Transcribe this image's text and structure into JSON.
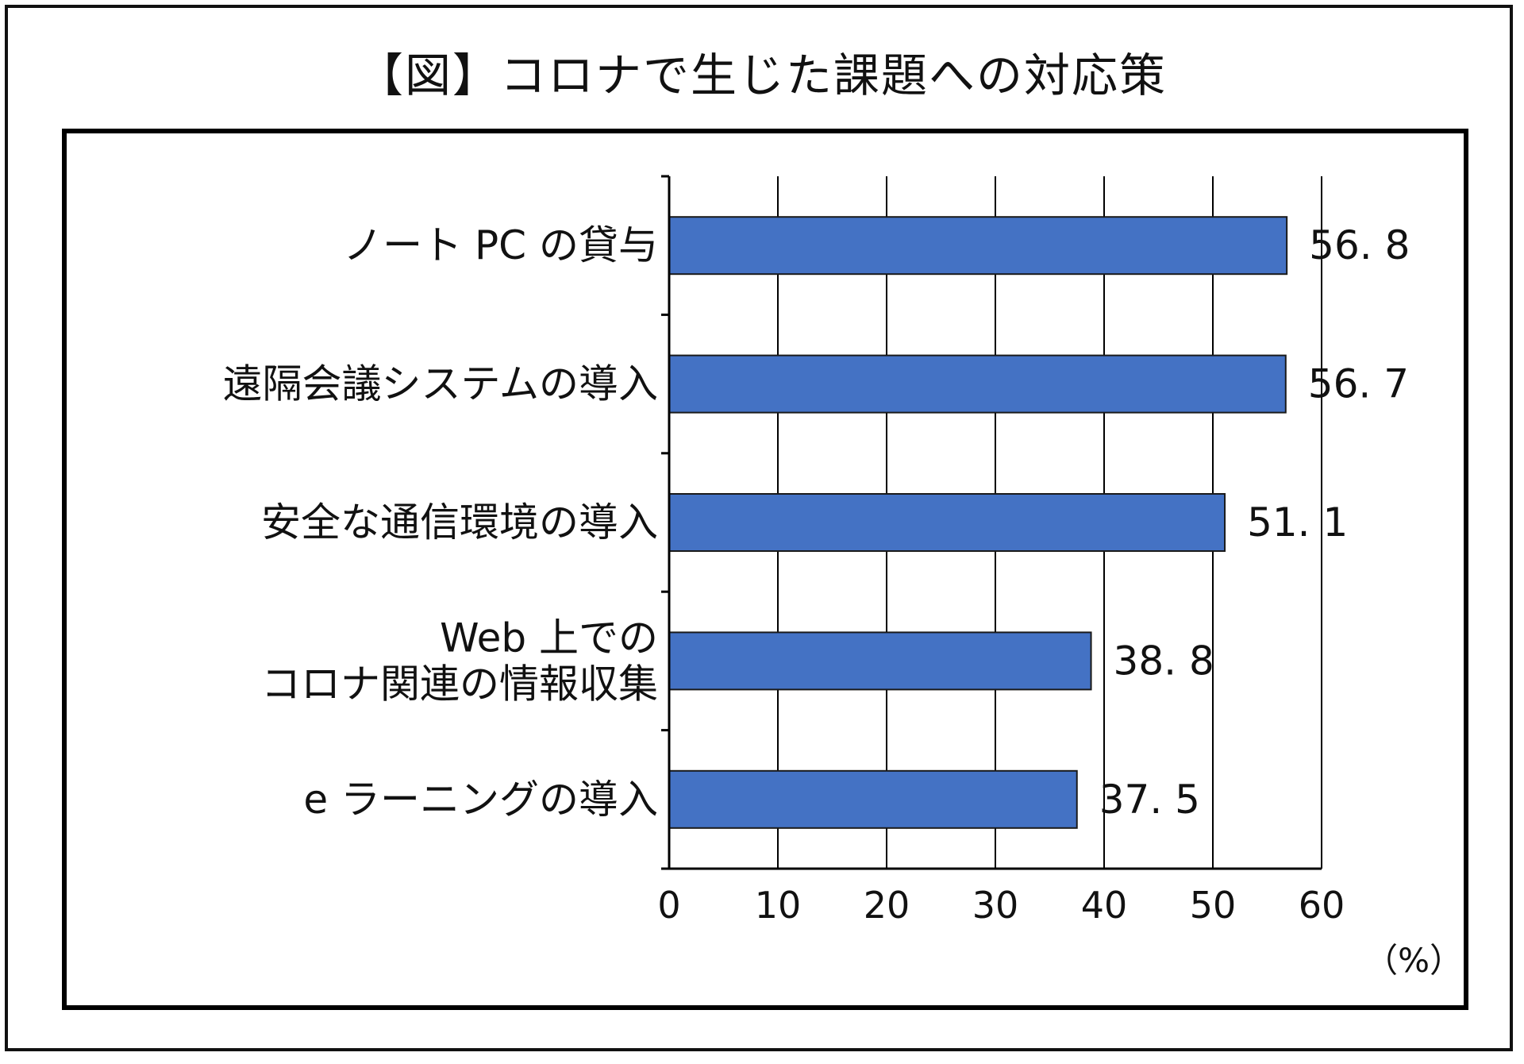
{
  "chart_data": {
    "type": "bar",
    "orientation": "horizontal",
    "title": "【図】コロナで生じた課題への対応策",
    "categories": [
      [
        "ノート PC の貸与"
      ],
      [
        "遠隔会議システムの導入"
      ],
      [
        "安全な通信環境の導入"
      ],
      [
        "Web 上での",
        "コロナ関連の情報収集"
      ],
      [
        "e ラーニングの導入"
      ]
    ],
    "values": [
      56.8,
      56.7,
      51.1,
      38.8,
      37.5
    ],
    "value_labels": [
      "56. 8",
      "56. 7",
      "51. 1",
      "38. 8",
      "37. 5"
    ],
    "xlim": [
      0,
      60
    ],
    "xticks": [
      0,
      10,
      20,
      30,
      40,
      50,
      60
    ],
    "xtick_labels": [
      "0",
      "10",
      "20",
      "30",
      "40",
      "50",
      "60"
    ],
    "unit": "（%）",
    "grid": true,
    "bar_color": "#4472c4",
    "bar_edge_color": "#1a1a1a"
  }
}
